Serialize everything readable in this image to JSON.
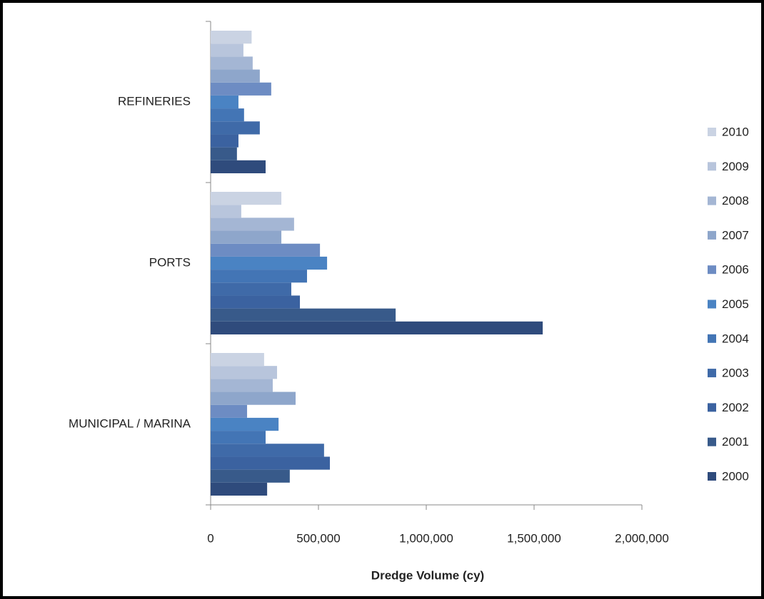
{
  "chart_data": {
    "type": "barh",
    "xlabel": "Dredge Volume (cy)",
    "categories": [
      "MUNICIPAL / MARINA",
      "PORTS",
      "REFINERIES"
    ],
    "series": [
      {
        "name": "2000",
        "color": "#2f4b7c",
        "values": [
          262000,
          1540000,
          255000
        ]
      },
      {
        "name": "2001",
        "color": "#385a8a",
        "values": [
          367000,
          858000,
          122000
        ]
      },
      {
        "name": "2002",
        "color": "#3b62a0",
        "values": [
          553000,
          414000,
          129000
        ]
      },
      {
        "name": "2003",
        "color": "#3f6aa8",
        "values": [
          526000,
          374000,
          228000
        ]
      },
      {
        "name": "2004",
        "color": "#4375b5",
        "values": [
          255000,
          447000,
          155000
        ]
      },
      {
        "name": "2005",
        "color": "#4a83c3",
        "values": [
          315000,
          540000,
          129000
        ]
      },
      {
        "name": "2006",
        "color": "#6d8cc3",
        "values": [
          169000,
          507000,
          281000
        ]
      },
      {
        "name": "2007",
        "color": "#8ea6cb",
        "values": [
          394000,
          328000,
          228000
        ]
      },
      {
        "name": "2008",
        "color": "#a4b6d4",
        "values": [
          288000,
          387000,
          195000
        ]
      },
      {
        "name": "2009",
        "color": "#b8c5dc",
        "values": [
          308000,
          142000,
          152000
        ]
      },
      {
        "name": "2010",
        "color": "#cad3e3",
        "values": [
          248000,
          328000,
          190000
        ]
      }
    ],
    "xlim": [
      0,
      2000000
    ],
    "xticks": [
      0,
      {
        "value": 500000,
        "label": "500,000"
      },
      {
        "value": 1000000,
        "label": "1,000,000"
      },
      {
        "value": 1500000,
        "label": "1,500,000"
      },
      {
        "value": 2000000,
        "label": "2,000,000"
      }
    ],
    "legend": "right"
  }
}
